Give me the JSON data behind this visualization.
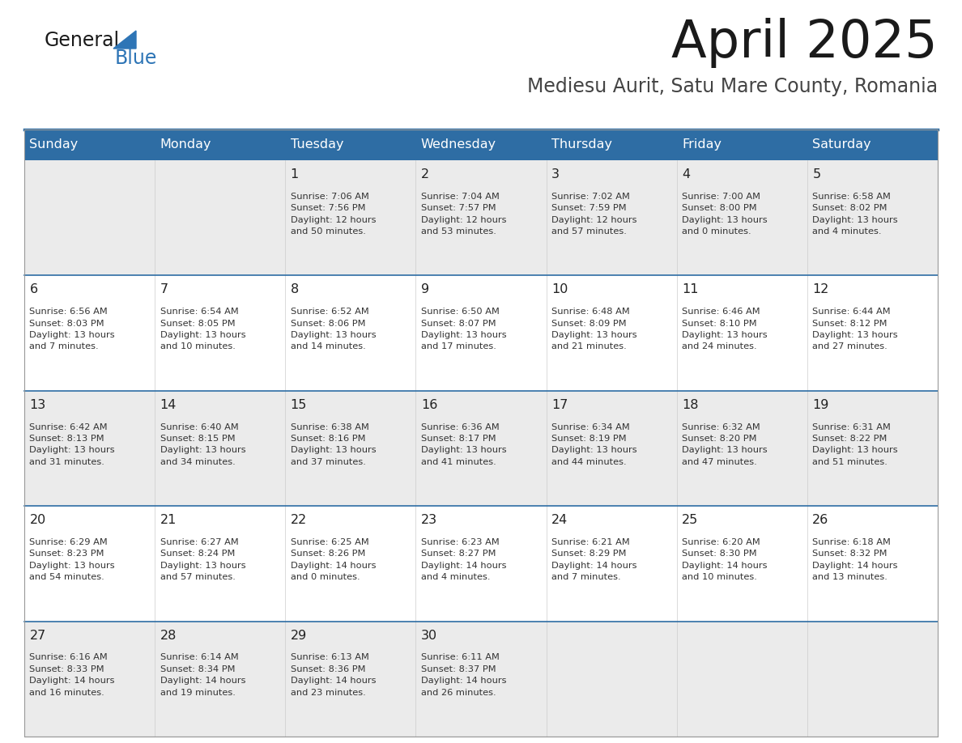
{
  "title": "April 2025",
  "subtitle": "Mediesu Aurit, Satu Mare County, Romania",
  "header_bg": "#2E6DA4",
  "header_text": "#FFFFFF",
  "day_names": [
    "Sunday",
    "Monday",
    "Tuesday",
    "Wednesday",
    "Thursday",
    "Friday",
    "Saturday"
  ],
  "cell_bg_even": "#EBEBEB",
  "cell_bg_odd": "#FFFFFF",
  "separator_color": "#2E6DA4",
  "number_color": "#222222",
  "text_color": "#333333",
  "title_color": "#1a1a1a",
  "subtitle_color": "#444444",
  "logo_general_color": "#1a1a1a",
  "logo_blue_color": "#2E75B6",
  "weeks": [
    [
      {
        "num": "",
        "info": ""
      },
      {
        "num": "",
        "info": ""
      },
      {
        "num": "1",
        "info": "Sunrise: 7:06 AM\nSunset: 7:56 PM\nDaylight: 12 hours\nand 50 minutes."
      },
      {
        "num": "2",
        "info": "Sunrise: 7:04 AM\nSunset: 7:57 PM\nDaylight: 12 hours\nand 53 minutes."
      },
      {
        "num": "3",
        "info": "Sunrise: 7:02 AM\nSunset: 7:59 PM\nDaylight: 12 hours\nand 57 minutes."
      },
      {
        "num": "4",
        "info": "Sunrise: 7:00 AM\nSunset: 8:00 PM\nDaylight: 13 hours\nand 0 minutes."
      },
      {
        "num": "5",
        "info": "Sunrise: 6:58 AM\nSunset: 8:02 PM\nDaylight: 13 hours\nand 4 minutes."
      }
    ],
    [
      {
        "num": "6",
        "info": "Sunrise: 6:56 AM\nSunset: 8:03 PM\nDaylight: 13 hours\nand 7 minutes."
      },
      {
        "num": "7",
        "info": "Sunrise: 6:54 AM\nSunset: 8:05 PM\nDaylight: 13 hours\nand 10 minutes."
      },
      {
        "num": "8",
        "info": "Sunrise: 6:52 AM\nSunset: 8:06 PM\nDaylight: 13 hours\nand 14 minutes."
      },
      {
        "num": "9",
        "info": "Sunrise: 6:50 AM\nSunset: 8:07 PM\nDaylight: 13 hours\nand 17 minutes."
      },
      {
        "num": "10",
        "info": "Sunrise: 6:48 AM\nSunset: 8:09 PM\nDaylight: 13 hours\nand 21 minutes."
      },
      {
        "num": "11",
        "info": "Sunrise: 6:46 AM\nSunset: 8:10 PM\nDaylight: 13 hours\nand 24 minutes."
      },
      {
        "num": "12",
        "info": "Sunrise: 6:44 AM\nSunset: 8:12 PM\nDaylight: 13 hours\nand 27 minutes."
      }
    ],
    [
      {
        "num": "13",
        "info": "Sunrise: 6:42 AM\nSunset: 8:13 PM\nDaylight: 13 hours\nand 31 minutes."
      },
      {
        "num": "14",
        "info": "Sunrise: 6:40 AM\nSunset: 8:15 PM\nDaylight: 13 hours\nand 34 minutes."
      },
      {
        "num": "15",
        "info": "Sunrise: 6:38 AM\nSunset: 8:16 PM\nDaylight: 13 hours\nand 37 minutes."
      },
      {
        "num": "16",
        "info": "Sunrise: 6:36 AM\nSunset: 8:17 PM\nDaylight: 13 hours\nand 41 minutes."
      },
      {
        "num": "17",
        "info": "Sunrise: 6:34 AM\nSunset: 8:19 PM\nDaylight: 13 hours\nand 44 minutes."
      },
      {
        "num": "18",
        "info": "Sunrise: 6:32 AM\nSunset: 8:20 PM\nDaylight: 13 hours\nand 47 minutes."
      },
      {
        "num": "19",
        "info": "Sunrise: 6:31 AM\nSunset: 8:22 PM\nDaylight: 13 hours\nand 51 minutes."
      }
    ],
    [
      {
        "num": "20",
        "info": "Sunrise: 6:29 AM\nSunset: 8:23 PM\nDaylight: 13 hours\nand 54 minutes."
      },
      {
        "num": "21",
        "info": "Sunrise: 6:27 AM\nSunset: 8:24 PM\nDaylight: 13 hours\nand 57 minutes."
      },
      {
        "num": "22",
        "info": "Sunrise: 6:25 AM\nSunset: 8:26 PM\nDaylight: 14 hours\nand 0 minutes."
      },
      {
        "num": "23",
        "info": "Sunrise: 6:23 AM\nSunset: 8:27 PM\nDaylight: 14 hours\nand 4 minutes."
      },
      {
        "num": "24",
        "info": "Sunrise: 6:21 AM\nSunset: 8:29 PM\nDaylight: 14 hours\nand 7 minutes."
      },
      {
        "num": "25",
        "info": "Sunrise: 6:20 AM\nSunset: 8:30 PM\nDaylight: 14 hours\nand 10 minutes."
      },
      {
        "num": "26",
        "info": "Sunrise: 6:18 AM\nSunset: 8:32 PM\nDaylight: 14 hours\nand 13 minutes."
      }
    ],
    [
      {
        "num": "27",
        "info": "Sunrise: 6:16 AM\nSunset: 8:33 PM\nDaylight: 14 hours\nand 16 minutes."
      },
      {
        "num": "28",
        "info": "Sunrise: 6:14 AM\nSunset: 8:34 PM\nDaylight: 14 hours\nand 19 minutes."
      },
      {
        "num": "29",
        "info": "Sunrise: 6:13 AM\nSunset: 8:36 PM\nDaylight: 14 hours\nand 23 minutes."
      },
      {
        "num": "30",
        "info": "Sunrise: 6:11 AM\nSunset: 8:37 PM\nDaylight: 14 hours\nand 26 minutes."
      },
      {
        "num": "",
        "info": ""
      },
      {
        "num": "",
        "info": ""
      },
      {
        "num": "",
        "info": ""
      }
    ]
  ]
}
